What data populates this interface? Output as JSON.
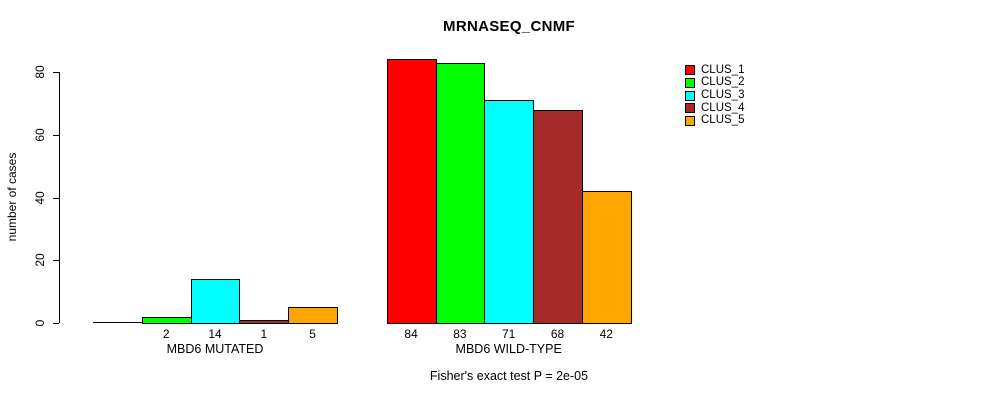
{
  "title": "MRNASEQ_CNMF",
  "footer_caption": "Fisher's exact test P = 2e-05",
  "colors": {
    "background": "#FFFFFF",
    "axis": "#000000",
    "text": "#000000"
  },
  "chart_data": {
    "type": "bar",
    "title": "MRNASEQ_CNMF",
    "ylabel": "number of cases",
    "xlabel": "Fisher's exact test P = 2e-05",
    "ylim": [
      0,
      80
    ],
    "y_ticks": [
      "0",
      "20",
      "40",
      "60",
      "80"
    ],
    "grid": false,
    "legend_position": "right",
    "categories": [
      "MBD6 MUTATED",
      "MBD6 WILD-TYPE"
    ],
    "series": [
      {
        "name": "CLUS_1",
        "color": "#FF0000",
        "values": [
          0,
          84
        ]
      },
      {
        "name": "CLUS_2",
        "color": "#00FF00",
        "values": [
          2,
          83
        ]
      },
      {
        "name": "CLUS_3",
        "color": "#00FFFF",
        "values": [
          14,
          71
        ]
      },
      {
        "name": "CLUS_4",
        "color": "#A52A2A",
        "values": [
          1,
          68
        ]
      },
      {
        "name": "CLUS_5",
        "color": "#FFA500",
        "values": [
          5,
          42
        ]
      }
    ],
    "bar_value_labels": [
      [
        "",
        "2",
        "14",
        "1",
        "5"
      ],
      [
        "84",
        "83",
        "71",
        "68",
        "42"
      ]
    ],
    "legend": [
      {
        "label": "CLUS_1",
        "color": "#FF0000"
      },
      {
        "label": "CLUS_2",
        "color": "#00FF00"
      },
      {
        "label": "CLUS_3",
        "color": "#00FFFF"
      },
      {
        "label": "CLUS_4",
        "color": "#A52A2A"
      },
      {
        "label": "CLUS_5",
        "color": "#FFA500"
      }
    ]
  }
}
